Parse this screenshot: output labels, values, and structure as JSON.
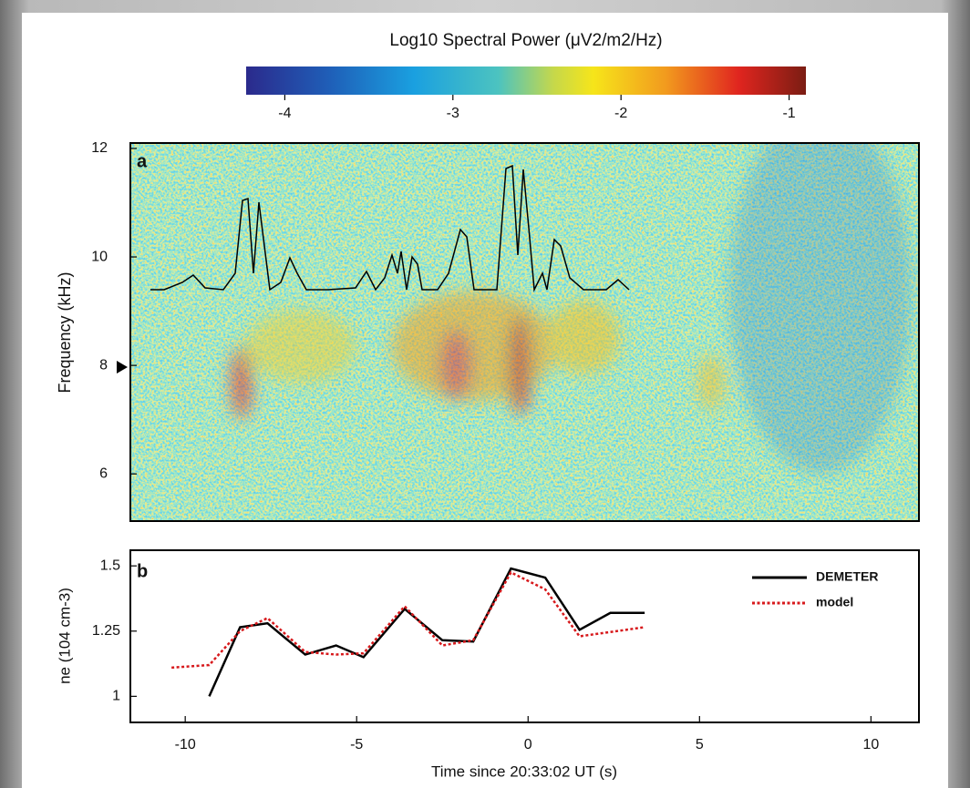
{
  "chart_data": [
    {
      "type": "heatmap",
      "panel_label": "a",
      "colorbar_title": "Log10 Spectral Power (μV2/m2/Hz)",
      "colorbar_lim": [
        -4.23,
        -0.9
      ],
      "colorbar_ticks": [
        -4,
        -3,
        -2,
        -1
      ],
      "ylabel": "Frequency (kHz)",
      "ylim": [
        5.13,
        12.1
      ],
      "yticks": [
        6,
        8,
        10,
        12
      ]
    },
    {
      "type": "line",
      "panel_label": "b",
      "ylabel": "ne (104 cm-3)",
      "xlabel": "Time since 20:33:02 UT (s)",
      "xlim": [
        -11.6,
        11.4
      ],
      "xticks": [
        -10,
        -5,
        0,
        5,
        10
      ],
      "ylim": [
        0.9,
        1.56
      ],
      "yticks": [
        1,
        1.25,
        1.5
      ],
      "legend": "upper right",
      "series": [
        {
          "name": "DEMETER",
          "color": "#000000",
          "style": "solid",
          "x": [
            -9.3,
            -8.4,
            -7.6,
            -6.5,
            -5.6,
            -4.8,
            -3.6,
            -2.5,
            -1.6,
            -0.5,
            0.5,
            1.5,
            2.4,
            3.4
          ],
          "values": [
            1.0,
            1.265,
            1.28,
            1.16,
            1.195,
            1.15,
            1.335,
            1.215,
            1.21,
            1.49,
            1.455,
            1.255,
            1.32,
            1.32
          ]
        },
        {
          "name": "model",
          "color": "#d7191c",
          "style": "dotted",
          "x": [
            -10.4,
            -9.3,
            -8.4,
            -7.6,
            -6.5,
            -5.6,
            -4.8,
            -3.6,
            -2.5,
            -1.6,
            -0.5,
            0.5,
            1.5,
            3.4
          ],
          "values": [
            1.11,
            1.12,
            1.25,
            1.3,
            1.17,
            1.16,
            1.165,
            1.345,
            1.195,
            1.215,
            1.475,
            1.41,
            1.23,
            1.265
          ]
        }
      ]
    }
  ]
}
